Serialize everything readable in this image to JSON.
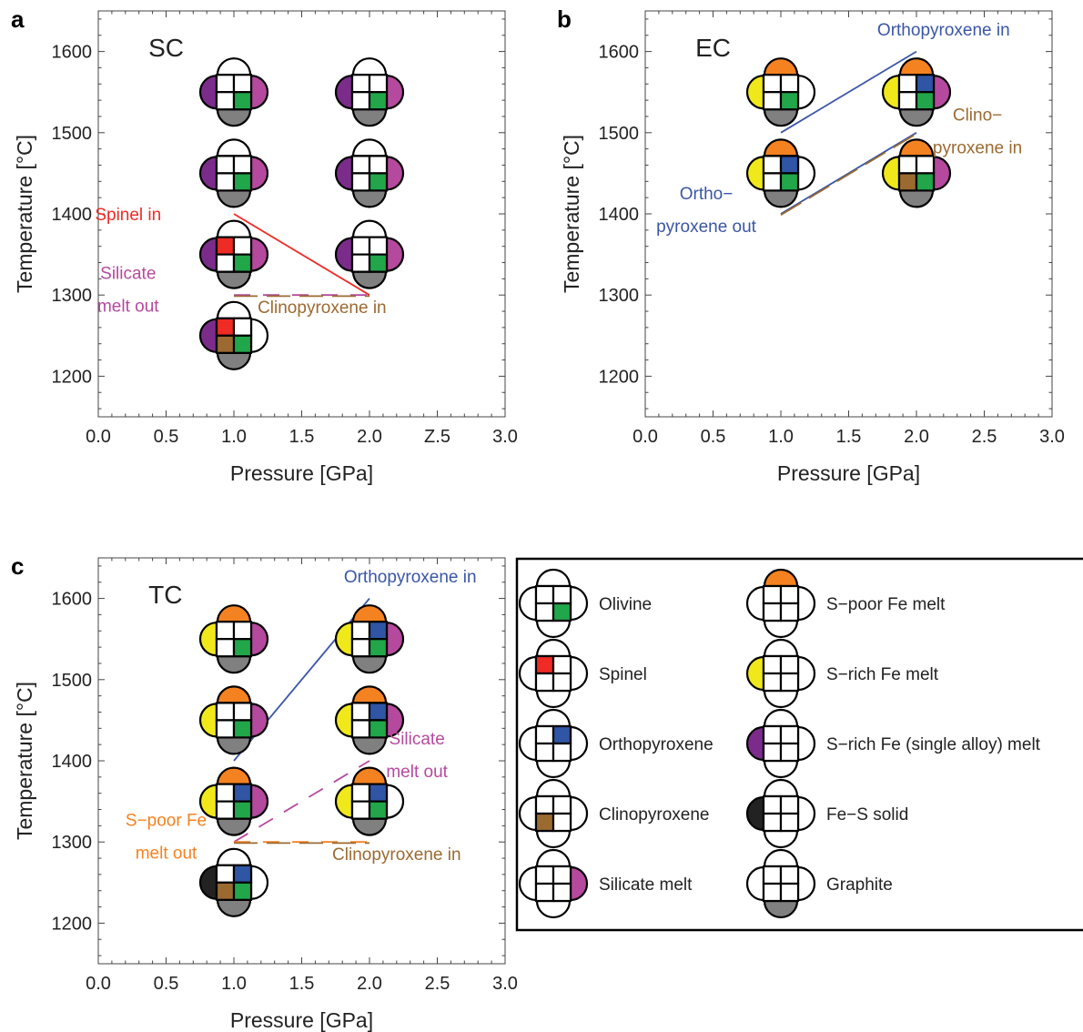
{
  "panel_labels": [
    "a",
    "b",
    "c"
  ],
  "colors": {
    "olivine": "#21a64a",
    "spinel": "#ee2b24",
    "orthopyroxene": "#2f55a4",
    "clinopyroxene": "#9b6a31",
    "silicate_melt": "#b5499e",
    "s_poor_fe_melt": "#f58220",
    "s_rich_fe_melt": "#f0e81a",
    "s_rich_fe_single_alloy_melt": "#7b2c8b",
    "fe_s_solid": "#222222",
    "graphite": "#808080",
    "spinel_line": "#ee2b24",
    "opx_line": "#3a56a5",
    "cpx_label": "#9b6a31",
    "silicate_label": "#b5499e",
    "s_poor_label": "#f58220"
  },
  "chart_data": [
    {
      "panel": "a",
      "type": "scatter",
      "title": "SC",
      "xlabel": "Pressure [GPa]",
      "ylabel": "Temperature [°C]",
      "xlim": [
        0,
        3
      ],
      "ylim": [
        1150,
        1650
      ],
      "xticks": [
        "0.0",
        "0.5",
        "1.0",
        "1.5",
        "2.0",
        "Z.5",
        "3.0"
      ],
      "yticks": [
        "1200",
        "1300",
        "1400",
        "1500",
        "1600"
      ],
      "points": [
        {
          "x": 1.0,
          "y": 1550,
          "top": null,
          "left": "s_rich_fe_single_alloy_melt",
          "right": "silicate_melt",
          "bottom": "graphite",
          "tl": null,
          "tr": null,
          "bl": null,
          "br": "olivine"
        },
        {
          "x": 2.0,
          "y": 1550,
          "top": null,
          "left": "s_rich_fe_single_alloy_melt",
          "right": "silicate_melt",
          "bottom": "graphite",
          "tl": null,
          "tr": null,
          "bl": null,
          "br": "olivine"
        },
        {
          "x": 1.0,
          "y": 1450,
          "top": null,
          "left": "s_rich_fe_single_alloy_melt",
          "right": "silicate_melt",
          "bottom": "graphite",
          "tl": null,
          "tr": null,
          "bl": null,
          "br": "olivine"
        },
        {
          "x": 2.0,
          "y": 1450,
          "top": null,
          "left": "s_rich_fe_single_alloy_melt",
          "right": "silicate_melt",
          "bottom": "graphite",
          "tl": null,
          "tr": null,
          "bl": null,
          "br": "olivine"
        },
        {
          "x": 1.0,
          "y": 1350,
          "top": null,
          "left": "s_rich_fe_single_alloy_melt",
          "right": "silicate_melt",
          "bottom": "graphite",
          "tl": "spinel",
          "tr": null,
          "bl": null,
          "br": "olivine"
        },
        {
          "x": 2.0,
          "y": 1350,
          "top": null,
          "left": "s_rich_fe_single_alloy_melt",
          "right": "silicate_melt",
          "bottom": "graphite",
          "tl": null,
          "tr": null,
          "bl": null,
          "br": "olivine"
        },
        {
          "x": 1.0,
          "y": 1250,
          "top": null,
          "left": "s_rich_fe_single_alloy_melt",
          "right": null,
          "bottom": "graphite",
          "tl": "spinel",
          "tr": null,
          "bl": "clinopyroxene",
          "br": "olivine"
        }
      ],
      "lines": [
        {
          "name": "Spinel in",
          "x": [
            1.0,
            2.0
          ],
          "y": [
            1400,
            1300
          ],
          "color": "spinel_line",
          "dash": false
        },
        {
          "name": "Silicate melt out",
          "x": [
            1.0,
            2.0
          ],
          "y": [
            1300,
            1300
          ],
          "color": "silicate_label",
          "dash": true
        },
        {
          "name": "Clinopyroxene in",
          "x": [
            1.0,
            2.0
          ],
          "y": [
            1300,
            1300
          ],
          "color": "cpx_label",
          "dash": true,
          "offset": 1
        }
      ],
      "annotations": [
        {
          "lines": [
            "Spinel in"
          ],
          "x": 0.22,
          "y": 1392,
          "color": "spinel_line"
        },
        {
          "lines": [
            "Silicate",
            "melt out"
          ],
          "x": 0.22,
          "y": 1320,
          "color": "silicate_label"
        },
        {
          "lines": [
            "Clinopyroxene in"
          ],
          "x": 1.65,
          "y": 1278,
          "color": "cpx_label"
        }
      ]
    },
    {
      "panel": "b",
      "type": "scatter",
      "title": "EC",
      "xlabel": "Pressure [GPa]",
      "ylabel": "Temperature [°C]",
      "xlim": [
        0,
        3
      ],
      "ylim": [
        1150,
        1650
      ],
      "xticks": [
        "0.0",
        "0.5",
        "1.0",
        "1.5",
        "2.0",
        "2.5",
        "3.0"
      ],
      "yticks": [
        "1200",
        "1300",
        "1400",
        "1500",
        "1600"
      ],
      "points": [
        {
          "x": 1.0,
          "y": 1550,
          "top": "s_poor_fe_melt",
          "left": "s_rich_fe_melt",
          "right": null,
          "bottom": "graphite",
          "tl": null,
          "tr": null,
          "bl": null,
          "br": "olivine"
        },
        {
          "x": 2.0,
          "y": 1550,
          "top": "s_poor_fe_melt",
          "left": "s_rich_fe_melt",
          "right": "silicate_melt",
          "bottom": "graphite",
          "tl": null,
          "tr": "orthopyroxene",
          "bl": null,
          "br": "olivine"
        },
        {
          "x": 1.0,
          "y": 1450,
          "top": "s_poor_fe_melt",
          "left": "s_rich_fe_melt",
          "right": null,
          "bottom": "graphite",
          "tl": null,
          "tr": "orthopyroxene",
          "bl": null,
          "br": "olivine"
        },
        {
          "x": 2.0,
          "y": 1450,
          "top": "s_poor_fe_melt",
          "left": "s_rich_fe_melt",
          "right": "silicate_melt",
          "bottom": "graphite",
          "tl": null,
          "tr": null,
          "bl": "clinopyroxene",
          "br": "olivine"
        }
      ],
      "lines": [
        {
          "name": "Orthopyroxene in",
          "x": [
            1.0,
            2.0
          ],
          "y": [
            1500,
            1600
          ],
          "color": "opx_line",
          "dash": false
        },
        {
          "name": "Ortho-pyroxene out",
          "x": [
            1.0,
            2.0
          ],
          "y": [
            1400,
            1500
          ],
          "color": "opx_line",
          "dash": false
        },
        {
          "name": "Clino-pyroxene in",
          "x": [
            1.0,
            2.0
          ],
          "y": [
            1400,
            1500
          ],
          "color": "cpx_label",
          "dash": true,
          "offset": 1
        }
      ],
      "annotations": [
        {
          "lines": [
            "Orthopyroxene in"
          ],
          "x": 2.2,
          "y": 1620,
          "color": "opx_line"
        },
        {
          "lines": [
            "Clino−",
            "pyroxene in"
          ],
          "x": 2.45,
          "y": 1515,
          "color": "cpx_label"
        },
        {
          "lines": [
            "Ortho−",
            "pyroxene out"
          ],
          "x": 0.45,
          "y": 1418,
          "color": "opx_line"
        }
      ]
    },
    {
      "panel": "c",
      "type": "scatter",
      "title": "TC",
      "xlabel": "Pressure [GPa]",
      "ylabel": "Temperature [°C]",
      "xlim": [
        0,
        3
      ],
      "ylim": [
        1150,
        1650
      ],
      "xticks": [
        "0.0",
        "0.5",
        "1.0",
        "1.5",
        "2.0",
        "2.5",
        "3.0"
      ],
      "yticks": [
        "1200",
        "1300",
        "1400",
        "1500",
        "1600"
      ],
      "points": [
        {
          "x": 1.0,
          "y": 1550,
          "top": "s_poor_fe_melt",
          "left": "s_rich_fe_melt",
          "right": "silicate_melt",
          "bottom": "graphite",
          "tl": null,
          "tr": null,
          "bl": null,
          "br": "olivine"
        },
        {
          "x": 2.0,
          "y": 1550,
          "top": "s_poor_fe_melt",
          "left": "s_rich_fe_melt",
          "right": "silicate_melt",
          "bottom": "graphite",
          "tl": null,
          "tr": "orthopyroxene",
          "bl": null,
          "br": "olivine"
        },
        {
          "x": 1.0,
          "y": 1450,
          "top": "s_poor_fe_melt",
          "left": "s_rich_fe_melt",
          "right": "silicate_melt",
          "bottom": "graphite",
          "tl": null,
          "tr": null,
          "bl": null,
          "br": "olivine"
        },
        {
          "x": 2.0,
          "y": 1450,
          "top": "s_poor_fe_melt",
          "left": "s_rich_fe_melt",
          "right": "silicate_melt",
          "bottom": "graphite",
          "tl": null,
          "tr": "orthopyroxene",
          "bl": null,
          "br": "olivine"
        },
        {
          "x": 1.0,
          "y": 1350,
          "top": "s_poor_fe_melt",
          "left": "s_rich_fe_melt",
          "right": "silicate_melt",
          "bottom": "graphite",
          "tl": null,
          "tr": "orthopyroxene",
          "bl": null,
          "br": "olivine"
        },
        {
          "x": 2.0,
          "y": 1350,
          "top": "s_poor_fe_melt",
          "left": "s_rich_fe_melt",
          "right": null,
          "bottom": "graphite",
          "tl": null,
          "tr": "orthopyroxene",
          "bl": null,
          "br": "olivine"
        },
        {
          "x": 1.0,
          "y": 1250,
          "top": null,
          "left": "fe_s_solid",
          "right": null,
          "bottom": "graphite",
          "tl": null,
          "tr": "orthopyroxene",
          "bl": "clinopyroxene",
          "br": "olivine"
        }
      ],
      "lines": [
        {
          "name": "Orthopyroxene in",
          "x": [
            1.0,
            2.0
          ],
          "y": [
            1400,
            1600
          ],
          "color": "opx_line",
          "dash": false
        },
        {
          "name": "Silicate melt out",
          "x": [
            1.0,
            2.0
          ],
          "y": [
            1300,
            1400
          ],
          "color": "silicate_label",
          "dash": true
        },
        {
          "name": "S-poor Fe melt out",
          "x": [
            1.0,
            2.0
          ],
          "y": [
            1300,
            1300
          ],
          "color": "s_poor_label",
          "dash": true
        },
        {
          "name": "Clinopyroxene in",
          "x": [
            1.0,
            2.0
          ],
          "y": [
            1300,
            1300
          ],
          "color": "cpx_label",
          "dash": true,
          "offset": 1
        }
      ],
      "annotations": [
        {
          "lines": [
            "Orthopyroxene in"
          ],
          "x": 2.3,
          "y": 1620,
          "color": "opx_line"
        },
        {
          "lines": [
            "Silicate",
            "melt out"
          ],
          "x": 2.35,
          "y": 1420,
          "color": "silicate_label"
        },
        {
          "lines": [
            "S−poor Fe",
            "melt out"
          ],
          "x": 0.5,
          "y": 1320,
          "color": "s_poor_label"
        },
        {
          "lines": [
            "Clinopyroxene in"
          ],
          "x": 2.2,
          "y": 1278,
          "color": "cpx_label"
        }
      ]
    }
  ],
  "legend": {
    "items": [
      {
        "label": "Olivine",
        "phase": "olivine",
        "slot": "br"
      },
      {
        "label": "Spinel",
        "phase": "spinel",
        "slot": "tl"
      },
      {
        "label": "Orthopyroxene",
        "phase": "orthopyroxene",
        "slot": "tr"
      },
      {
        "label": "Clinopyroxene",
        "phase": "clinopyroxene",
        "slot": "bl"
      },
      {
        "label": "Silicate melt",
        "phase": "silicate_melt",
        "slot": "right"
      },
      {
        "label": "S−poor Fe melt",
        "phase": "s_poor_fe_melt",
        "slot": "top"
      },
      {
        "label": "S−rich Fe melt",
        "phase": "s_rich_fe_melt",
        "slot": "left"
      },
      {
        "label": "S−rich Fe (single alloy) melt",
        "phase": "s_rich_fe_single_alloy_melt",
        "slot": "left"
      },
      {
        "label": "Fe−S solid",
        "phase": "fe_s_solid",
        "slot": "left"
      },
      {
        "label": "Graphite",
        "phase": "graphite",
        "slot": "bottom"
      }
    ]
  }
}
